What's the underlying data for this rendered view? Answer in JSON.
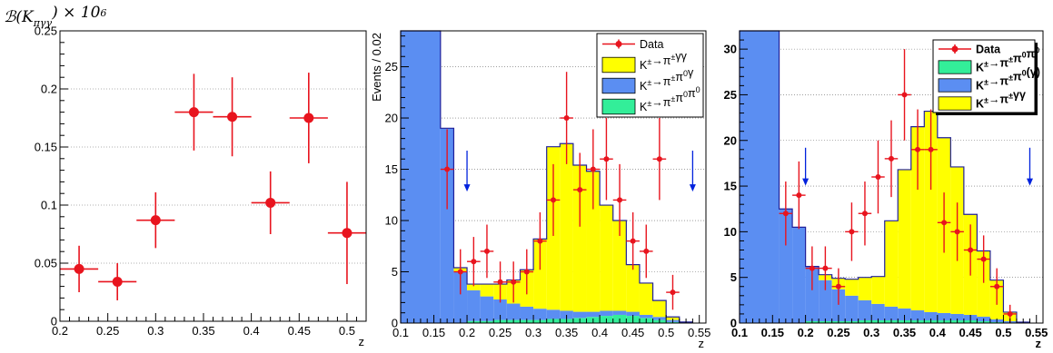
{
  "colors": {
    "data": "#e8141e",
    "signal": "#ffff00",
    "pi0gamma": "#5b8ef2",
    "pi0pi0": "#33ee99",
    "arrow": "#0022dd",
    "outline": "#20209a"
  },
  "chart_data": [
    {
      "type": "scatter",
      "title": "",
      "ylabel": "ℬ(K_πγγ) × 10^6",
      "xlabel": "z",
      "xlim": [
        0.2,
        0.52
      ],
      "ylim": [
        0,
        0.25
      ],
      "xticks": [
        "0.2",
        "0.25",
        "0.3",
        "0.35",
        "0.4",
        "0.45",
        "0.5"
      ],
      "yticks": [
        "0",
        "0.05",
        "0.1",
        "0.15",
        "0.2",
        "0.25"
      ],
      "grid": "horizontal",
      "series": [
        {
          "x": [
            0.22,
            0.26,
            0.3,
            0.34,
            0.38,
            0.42,
            0.46,
            0.5
          ],
          "y": [
            0.045,
            0.034,
            0.087,
            0.18,
            0.176,
            0.102,
            0.175,
            0.076
          ],
          "xerr": [
            0.02,
            0.02,
            0.02,
            0.02,
            0.02,
            0.02,
            0.02,
            0.02
          ],
          "yerr": [
            0.02,
            0.016,
            0.024,
            0.033,
            0.034,
            0.027,
            0.039,
            0.044
          ]
        }
      ]
    },
    {
      "type": "bar",
      "title": "",
      "ylabel": "Events / 0.02",
      "xlabel": "z",
      "xlim": [
        0.1,
        0.56
      ],
      "ylim": [
        0,
        28.5
      ],
      "xticks": [
        "0.1",
        "0.15",
        "0.2",
        "0.25",
        "0.3",
        "0.35",
        "0.4",
        "0.45",
        "0.5",
        "0.55"
      ],
      "yticks": [
        "0",
        "5",
        "10",
        "15",
        "20",
        "25"
      ],
      "grid": "horizontal",
      "legend_position": "top-right",
      "legend": [
        "Data",
        "K±→π±γγ",
        "K±→π±π0γ",
        "K±→π±π0π0"
      ],
      "bin_edges": [
        0.1,
        0.16,
        0.18,
        0.2,
        0.22,
        0.24,
        0.26,
        0.28,
        0.3,
        0.32,
        0.34,
        0.36,
        0.38,
        0.4,
        0.42,
        0.44,
        0.46,
        0.48,
        0.5,
        0.52,
        0.54
      ],
      "stack": [
        {
          "name": "K±→π±π0π0",
          "values": [
            0,
            0,
            0,
            0.2,
            0.2,
            0.3,
            0.3,
            0.3,
            0.3,
            0.4,
            0.4,
            0.5,
            0.6,
            0.7,
            0.8,
            0.7,
            0.5,
            0.3,
            0.1,
            0
          ]
        },
        {
          "name": "K±→π±π0γ",
          "values": [
            50,
            19,
            5.0,
            3.0,
            2.4,
            2.0,
            1.6,
            1.3,
            1.1,
            0.9,
            0.8,
            0.6,
            0.5,
            0.5,
            0.4,
            0.4,
            0.3,
            0.3,
            0.2,
            0.1
          ]
        },
        {
          "name": "K±→π±γγ",
          "values": [
            0,
            0,
            0.4,
            0.6,
            1.2,
            1.5,
            2.3,
            3.6,
            6.8,
            15.9,
            16.3,
            14.3,
            13.7,
            10.3,
            8.8,
            4.6,
            3.1,
            1.6,
            0.3,
            0
          ]
        }
      ],
      "data_points": {
        "x": [
          0.17,
          0.19,
          0.21,
          0.23,
          0.25,
          0.27,
          0.29,
          0.31,
          0.33,
          0.35,
          0.37,
          0.39,
          0.41,
          0.43,
          0.45,
          0.47,
          0.49,
          0.51
        ],
        "y": [
          15,
          5,
          6,
          7,
          4,
          4,
          5,
          8,
          12,
          20,
          13,
          15,
          16,
          12,
          8,
          7,
          16,
          3
        ],
        "xerr": [
          0.01,
          0.01,
          0.01,
          0.01,
          0.01,
          0.01,
          0.01,
          0.01,
          0.01,
          0.01,
          0.01,
          0.01,
          0.01,
          0.01,
          0.01,
          0.01,
          0.01,
          0.01
        ],
        "yerr": [
          3.9,
          2.2,
          2.4,
          2.6,
          2.0,
          2.0,
          2.2,
          2.8,
          3.5,
          4.5,
          3.6,
          3.9,
          4.0,
          3.5,
          2.8,
          2.6,
          4.0,
          1.7
        ]
      },
      "arrows_x": [
        0.2,
        0.54
      ]
    },
    {
      "type": "bar",
      "title": "",
      "ylabel": "",
      "xlabel": "z",
      "xlim": [
        0.1,
        0.56
      ],
      "ylim": [
        0,
        32
      ],
      "xticks": [
        "0.1",
        "0.15",
        "0.2",
        "0.25",
        "0.3",
        "0.35",
        "0.4",
        "0.45",
        "0.5",
        "0.55"
      ],
      "yticks": [
        "0",
        "5",
        "10",
        "15",
        "20",
        "25",
        "30"
      ],
      "grid": "horizontal",
      "legend_position": "top-right",
      "legend": [
        "Data",
        "K±→π±π0π0",
        "K±→π±π0(γ)",
        "K±→π±γγ"
      ],
      "bin_edges": [
        0.1,
        0.16,
        0.18,
        0.2,
        0.22,
        0.24,
        0.26,
        0.28,
        0.3,
        0.32,
        0.34,
        0.36,
        0.38,
        0.4,
        0.42,
        0.44,
        0.46,
        0.48,
        0.5,
        0.52,
        0.54
      ],
      "stack": [
        {
          "name": "K±→π±π0π0",
          "values": [
            0,
            0,
            0,
            0.2,
            0.2,
            0.2,
            0.2,
            0.3,
            0.3,
            0.3,
            0.3,
            0.3,
            0.3,
            0.3,
            0.3,
            0.3,
            0.2,
            0.1,
            0,
            0
          ]
        },
        {
          "name": "K±→π±π0(γ)",
          "values": [
            50,
            12.5,
            10.5,
            6.0,
            4.5,
            3.5,
            2.8,
            2.2,
            1.8,
            1.5,
            1.3,
            1.1,
            0.9,
            0.8,
            0.7,
            0.6,
            0.5,
            0.3,
            0.2,
            0.1
          ]
        },
        {
          "name": "K±→π±γγ",
          "values": [
            0,
            0,
            0,
            0,
            0.6,
            1.2,
            1.8,
            2.5,
            3.0,
            9.4,
            15.2,
            20.1,
            22.0,
            19.2,
            16.1,
            11.0,
            7.2,
            4.3,
            1.0,
            0
          ]
        }
      ],
      "data_points": {
        "x": [
          0.17,
          0.19,
          0.21,
          0.23,
          0.25,
          0.27,
          0.29,
          0.31,
          0.33,
          0.35,
          0.37,
          0.39,
          0.41,
          0.43,
          0.45,
          0.47,
          0.49,
          0.51
        ],
        "y": [
          12,
          14,
          6,
          6,
          4,
          10,
          12,
          16,
          18,
          25,
          19,
          19,
          11,
          10,
          8,
          7,
          4,
          1
        ],
        "xerr": [
          0.01,
          0.01,
          0.01,
          0.01,
          0.01,
          0.01,
          0.01,
          0.01,
          0.01,
          0.01,
          0.01,
          0.01,
          0.01,
          0.01,
          0.01,
          0.01,
          0.01,
          0.01
        ],
        "yerr": [
          3.5,
          3.7,
          2.4,
          2.4,
          2.0,
          3.2,
          3.5,
          4.0,
          4.2,
          5.0,
          4.4,
          4.4,
          3.3,
          3.2,
          2.8,
          2.6,
          2.0,
          1.0
        ]
      },
      "arrows_x": [
        0.2,
        0.54
      ]
    }
  ]
}
